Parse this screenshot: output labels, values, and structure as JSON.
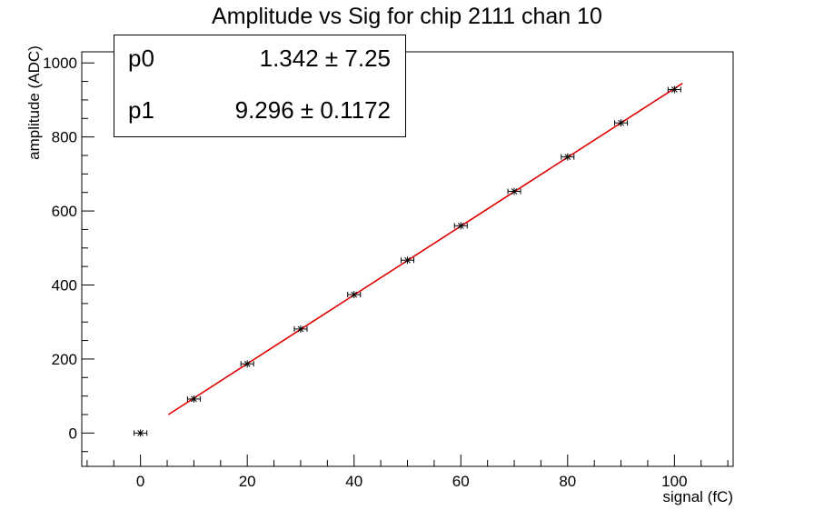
{
  "chart_data": {
    "type": "scatter",
    "title": "Amplitude vs Sig for chip 2111 chan 10",
    "xlabel": "signal (fC)",
    "ylabel": "amplitude (ADC)",
    "xlim": [
      -11,
      111
    ],
    "ylim": [
      -90,
      1030
    ],
    "x_ticks": [
      0,
      20,
      40,
      60,
      80,
      100
    ],
    "y_ticks": [
      0,
      200,
      400,
      600,
      800,
      1000
    ],
    "grid": false,
    "series": [
      {
        "x": [
          0,
          10,
          20,
          30,
          40,
          50,
          60,
          70,
          80,
          90,
          100
        ],
        "y": [
          0,
          92,
          187,
          281,
          374,
          467,
          560,
          653,
          746,
          838,
          928
        ]
      }
    ],
    "fit": {
      "p0": 1.342,
      "p1": 9.296,
      "x_range": [
        5.2,
        101.5
      ],
      "color": "#e00000"
    },
    "point_color": "#000000"
  },
  "stats": {
    "p0_name": "p0",
    "p0_value": "1.342 ±  7.25",
    "p1_name": "p1",
    "p1_value": "9.296 ± 0.1172"
  }
}
